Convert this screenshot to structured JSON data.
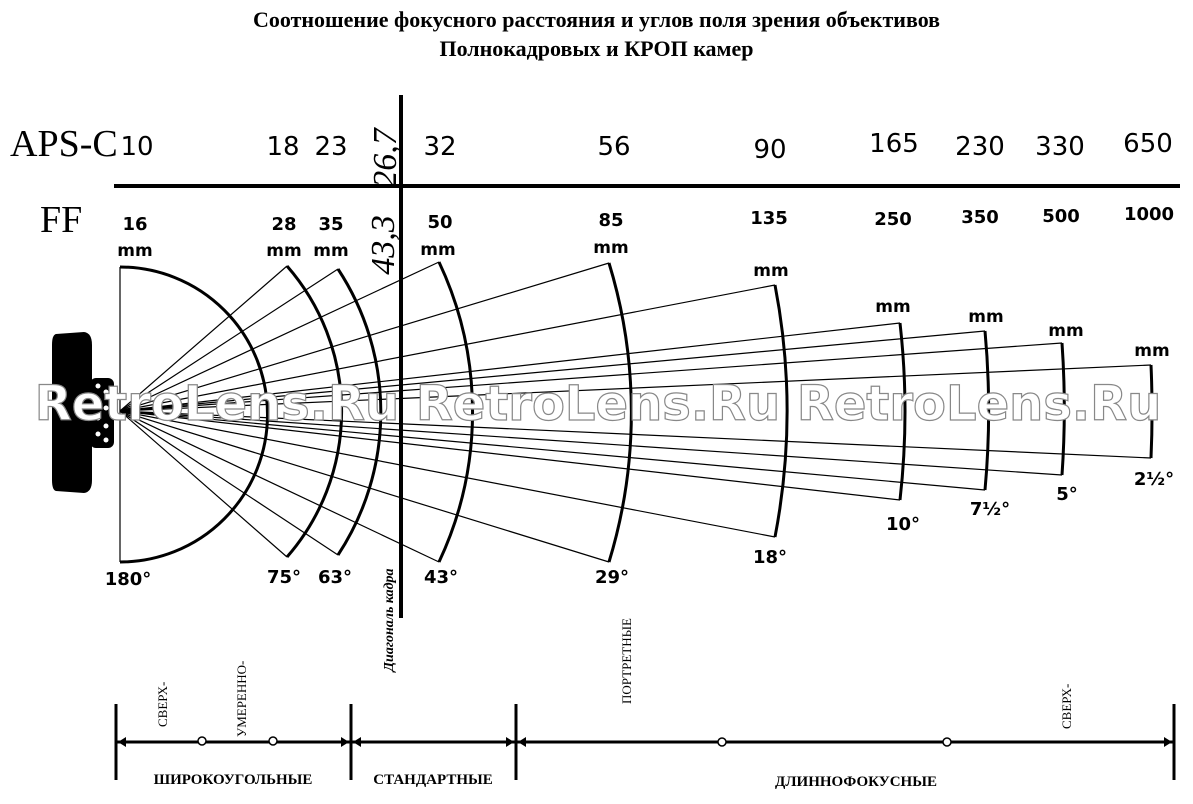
{
  "title_line1": "Соотношение фокусного расстояния и углов поля зрения объективов",
  "title_line2": "Полнокадровых и КРОП камер",
  "row_labels": {
    "apsc": "APS-C",
    "ff": "FF"
  },
  "diagonal": {
    "apsc": "26,7",
    "ff": "43,3",
    "label": "Диагональ кадра"
  },
  "lenses": [
    {
      "apsc": "10",
      "ff": "16",
      "unit": "mm",
      "angle": "180°"
    },
    {
      "apsc": "18",
      "ff": "28",
      "unit": "mm",
      "angle": "75°"
    },
    {
      "apsc": "23",
      "ff": "35",
      "unit": "mm",
      "angle": "63°"
    },
    {
      "apsc": "32",
      "ff": "50",
      "unit": "mm",
      "angle": "43°"
    },
    {
      "apsc": "56",
      "ff": "85",
      "unit": "mm",
      "angle": "29°"
    },
    {
      "apsc": "90",
      "ff": "135",
      "unit": "mm",
      "angle": "18°"
    },
    {
      "apsc": "165",
      "ff": "250",
      "unit": "mm",
      "angle": "10°"
    },
    {
      "apsc": "230",
      "ff": "350",
      "unit": "mm",
      "angle": "7½°"
    },
    {
      "apsc": "330",
      "ff": "500",
      "unit": "mm",
      "angle": "5°"
    },
    {
      "apsc": "650",
      "ff": "1000",
      "unit": "mm",
      "angle": "2½°"
    }
  ],
  "watermark": "RetroLens.Ru  RetroLens.Ru  RetroLens.Ru",
  "categories": {
    "wide": "ШИРОКОУГОЛЬНЫЕ",
    "standard": "СТАНДАРТНЫЕ",
    "tele": "ДЛИННОФОКУСНЫЕ",
    "sub_super_wide": "СВЕРХ-",
    "sub_moderate": "УМЕРЕННО-",
    "sub_portrait": "ПОРТРЕТНЫЕ",
    "sub_super_tele": "СВЕРХ-"
  },
  "colors": {
    "ink": "#000000",
    "watermark": "#ffffff"
  }
}
